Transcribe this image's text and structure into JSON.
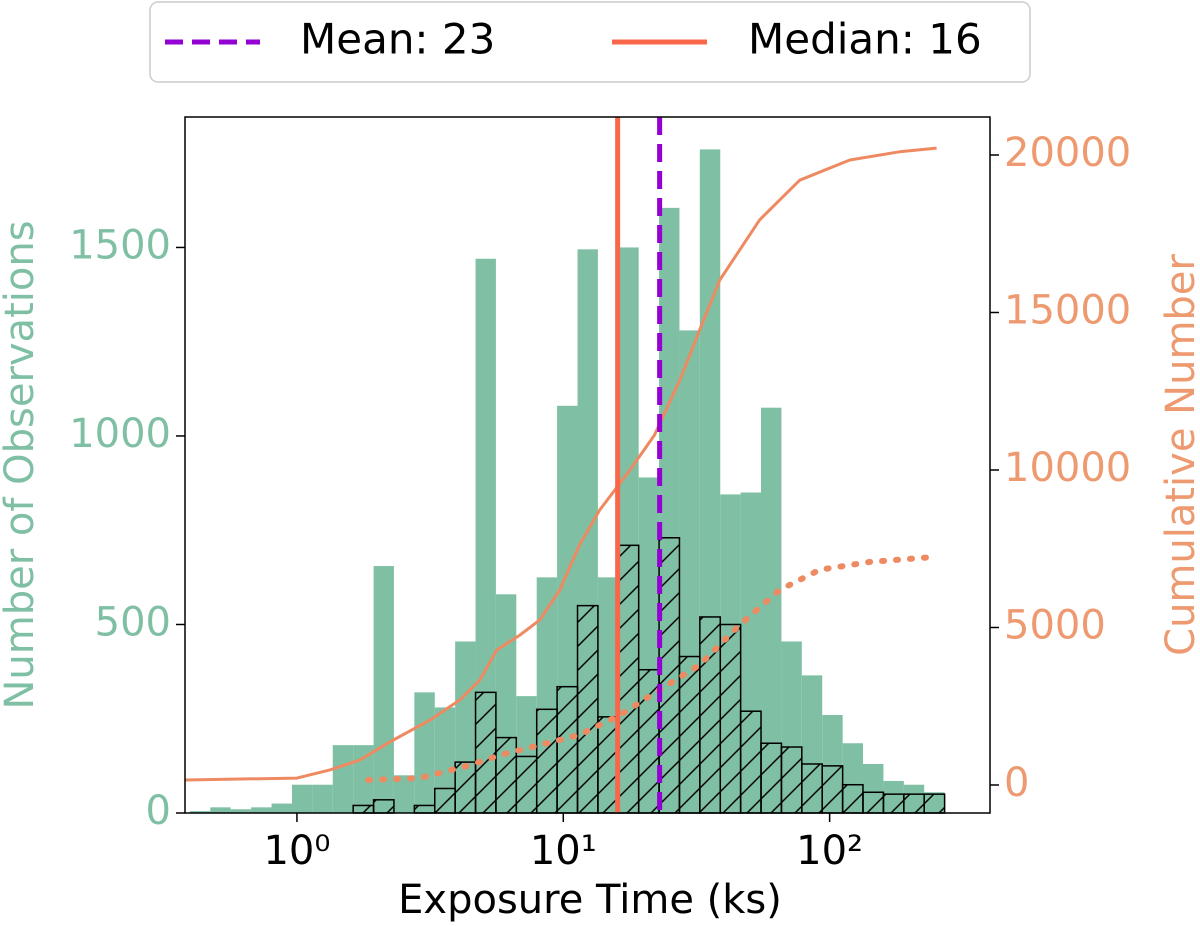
{
  "chart_data": {
    "type": "histogram",
    "xlabel": "Exposure Time (ks)",
    "ylabel": "Number of Observations",
    "y2label": "Cumulative Number",
    "ylabel_color": "#7fbfa4",
    "y2label_color": "#ee9a70",
    "xscale": "log",
    "xlim": [
      0.38,
      400
    ],
    "ylim": [
      0,
      1846
    ],
    "y2lim": [
      -889,
      21206
    ],
    "xticks": [
      {
        "value": 1,
        "label": "10⁰"
      },
      {
        "value": 10,
        "label": "10¹"
      },
      {
        "value": 100,
        "label": "10²"
      }
    ],
    "yticks": [
      0,
      500,
      1000,
      1500
    ],
    "y2ticks": [
      0,
      5000,
      10000,
      15000,
      20000
    ],
    "bins": [
      0.397,
      0.473,
      0.564,
      0.673,
      0.803,
      0.958,
      1.143,
      1.363,
      1.626,
      1.94,
      2.313,
      2.76,
      3.292,
      3.927,
      4.684,
      5.585,
      6.662,
      7.948,
      9.478,
      11.31,
      13.49,
      16.09,
      19.19,
      22.89,
      27.3,
      32.56,
      38.85,
      46.33,
      55.26,
      65.92,
      78.62,
      93.78,
      111.9,
      133.4,
      159.2,
      189.9,
      226.5,
      270.2
    ],
    "series": [
      {
        "color": "#7fbfa4",
        "style": "filled",
        "values": [
          5,
          15,
          10,
          15,
          25,
          75,
          75,
          180,
          180,
          655,
          100,
          320,
          280,
          455,
          1470,
          580,
          310,
          625,
          1080,
          1495,
          625,
          1500,
          890,
          1605,
          1280,
          1760,
          845,
          850,
          1075,
          455,
          365,
          260,
          185,
          130,
          85,
          75,
          55
        ]
      },
      {
        "color": "#000000",
        "style": "hatched",
        "values": [
          0,
          0,
          0,
          0,
          0,
          0,
          0,
          0,
          20,
          35,
          0,
          20,
          65,
          135,
          320,
          200,
          150,
          275,
          335,
          550,
          255,
          710,
          380,
          730,
          415,
          520,
          500,
          270,
          185,
          175,
          130,
          125,
          75,
          55,
          50,
          50,
          50
        ]
      }
    ],
    "lines": [
      {
        "axis": "y2",
        "color": "#ee8a62",
        "style": "solid",
        "x": [
          0.38,
          1.0,
          1.33,
          1.72,
          2.23,
          3.16,
          4.09,
          4.86,
          5.63,
          6.87,
          8.16,
          9.7,
          11.5,
          13.7,
          17.8,
          22.0,
          27.4,
          32.5,
          38.7,
          54.6,
          77.2,
          119,
          183,
          252
        ],
        "values": [
          160,
          220,
          480,
          790,
          1365,
          2060,
          2700,
          3330,
          4290,
          4760,
          5240,
          6190,
          7620,
          8730,
          10000,
          11110,
          12860,
          14440,
          16030,
          17940,
          19200,
          19840,
          20100,
          20220
        ]
      },
      {
        "axis": "y2",
        "color": "#ee8a62",
        "style": "dotted",
        "x": [
          1.85,
          2.89,
          4.46,
          5.78,
          8.16,
          11.5,
          16.3,
          23.0,
          32.5,
          45.9,
          64.9,
          91.7,
          141,
          248
        ],
        "values": [
          160,
          220,
          630,
          950,
          1270,
          1590,
          2220,
          3020,
          3810,
          5080,
          6190,
          6830,
          7080,
          7240
        ]
      }
    ],
    "vlines": [
      {
        "name": "Mean: 23",
        "x": 23,
        "color": "#9400d3",
        "style": "dashed"
      },
      {
        "name": "Median: 16",
        "x": 16,
        "color": "#f8674a",
        "style": "solid"
      }
    ],
    "legend": "top-outside"
  }
}
